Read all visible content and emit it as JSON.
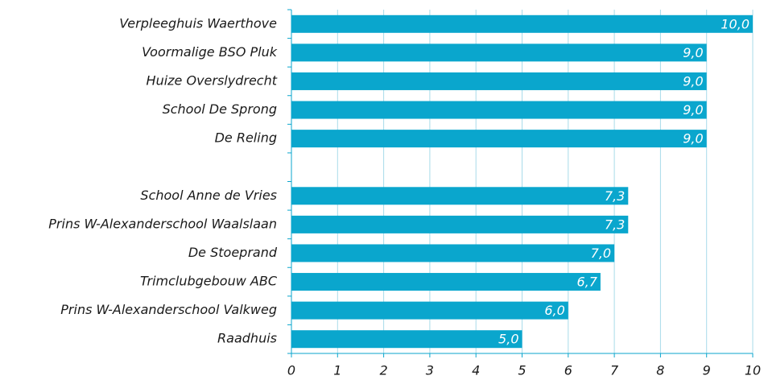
{
  "chart_data": {
    "type": "barh",
    "categories": [
      "Verpleeghuis Waerthove",
      "Voormalige BSO Pluk",
      "Huize Overslydrecht",
      "School De Sprong",
      "De Reling",
      null,
      "School Anne de Vries",
      "Prins W-Alexanderschool Waalslaan",
      "De Stoeprand",
      "Trimclubgebouw ABC",
      "Prins W-Alexanderschool Valkweg",
      "Raadhuis"
    ],
    "values": [
      10,
      9,
      9,
      9,
      9,
      null,
      7.3,
      7.3,
      7,
      6.7,
      6,
      5
    ],
    "value_labels": [
      "10,0",
      "9,0",
      "9,0",
      "9,0",
      "9,0",
      null,
      "7,3",
      "7,3",
      "7,0",
      "6,7",
      "6,0",
      "5,0"
    ],
    "color": "#0aa6cd",
    "xlim": [
      0,
      10
    ],
    "xticks": [
      0,
      1,
      2,
      3,
      4,
      5,
      6,
      7,
      8,
      9,
      10
    ],
    "grid": true
  }
}
